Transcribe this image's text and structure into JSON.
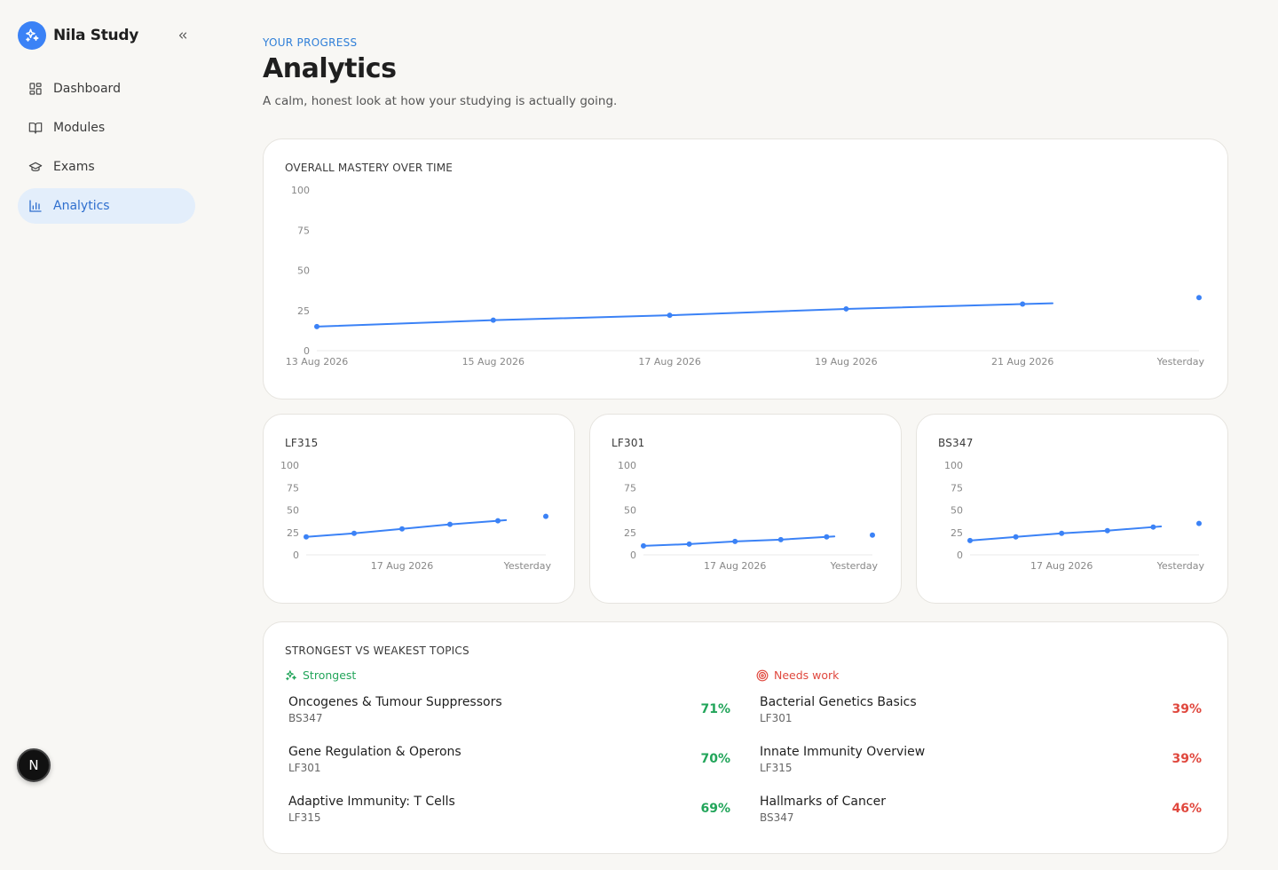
{
  "app": {
    "name": "Nila Study",
    "avatar_letter": "N"
  },
  "sidebar": {
    "items": [
      {
        "label": "Dashboard",
        "icon": "dashboard-icon"
      },
      {
        "label": "Modules",
        "icon": "book-icon"
      },
      {
        "label": "Exams",
        "icon": "graduation-cap-icon"
      },
      {
        "label": "Analytics",
        "icon": "bar-chart-icon",
        "active": true
      }
    ]
  },
  "header": {
    "eyebrow": "YOUR PROGRESS",
    "title": "Analytics",
    "subtitle": "A calm, honest look at how your studying is actually going."
  },
  "colors": {
    "accent": "#3b82f6",
    "strong": "#22a55a",
    "weak": "#e0483e"
  },
  "chart_data": [
    {
      "type": "line",
      "title": "OVERALL MASTERY OVER TIME",
      "x": [
        "13 Aug 2026",
        "15 Aug 2026",
        "17 Aug 2026",
        "19 Aug 2026",
        "21 Aug 2026",
        "Yesterday"
      ],
      "tick_labels": [
        "13 Aug 2026",
        "15 Aug 2026",
        "17 Aug 2026",
        "19 Aug 2026",
        "21 Aug 2026",
        "Yesterday"
      ],
      "series": [
        {
          "values": [
            15,
            19,
            22,
            26,
            29,
            33
          ]
        }
      ],
      "ylim": [
        0,
        100
      ],
      "yticks": [
        0,
        25,
        50,
        75,
        100
      ],
      "grid": false
    },
    {
      "type": "line",
      "title": "LF315",
      "x": [
        "13 Aug 2026",
        "15 Aug 2026",
        "17 Aug 2026",
        "19 Aug 2026",
        "21 Aug 2026",
        "Yesterday"
      ],
      "tick_labels": [
        "",
        "",
        "17 Aug 2026",
        "",
        "",
        "Yesterday"
      ],
      "series": [
        {
          "values": [
            20,
            24,
            29,
            34,
            38,
            43
          ]
        }
      ],
      "ylim": [
        0,
        100
      ],
      "yticks": [
        0,
        25,
        50,
        75,
        100
      ],
      "grid": false
    },
    {
      "type": "line",
      "title": "LF301",
      "x": [
        "13 Aug 2026",
        "15 Aug 2026",
        "17 Aug 2026",
        "19 Aug 2026",
        "21 Aug 2026",
        "Yesterday"
      ],
      "tick_labels": [
        "",
        "",
        "17 Aug 2026",
        "",
        "",
        "Yesterday"
      ],
      "series": [
        {
          "values": [
            10,
            12,
            15,
            17,
            20,
            22
          ]
        }
      ],
      "ylim": [
        0,
        100
      ],
      "yticks": [
        0,
        25,
        50,
        75,
        100
      ],
      "grid": false
    },
    {
      "type": "line",
      "title": "BS347",
      "x": [
        "13 Aug 2026",
        "15 Aug 2026",
        "17 Aug 2026",
        "19 Aug 2026",
        "21 Aug 2026",
        "Yesterday"
      ],
      "tick_labels": [
        "",
        "",
        "17 Aug 2026",
        "",
        "",
        "Yesterday"
      ],
      "series": [
        {
          "values": [
            16,
            20,
            24,
            27,
            31,
            35
          ]
        }
      ],
      "ylim": [
        0,
        100
      ],
      "yticks": [
        0,
        25,
        50,
        75,
        100
      ],
      "grid": false
    }
  ],
  "topics": {
    "title": "STRONGEST VS WEAKEST TOPICS",
    "strongest": {
      "label": "Strongest",
      "items": [
        {
          "name": "Oncogenes & Tumour Suppressors",
          "code": "BS347",
          "pct": "71%"
        },
        {
          "name": "Gene Regulation & Operons",
          "code": "LF301",
          "pct": "70%"
        },
        {
          "name": "Adaptive Immunity: T Cells",
          "code": "LF315",
          "pct": "69%"
        }
      ]
    },
    "weakest": {
      "label": "Needs work",
      "items": [
        {
          "name": "Bacterial Genetics Basics",
          "code": "LF301",
          "pct": "39%"
        },
        {
          "name": "Innate Immunity Overview",
          "code": "LF315",
          "pct": "39%"
        },
        {
          "name": "Hallmarks of Cancer",
          "code": "BS347",
          "pct": "46%"
        }
      ]
    }
  }
}
